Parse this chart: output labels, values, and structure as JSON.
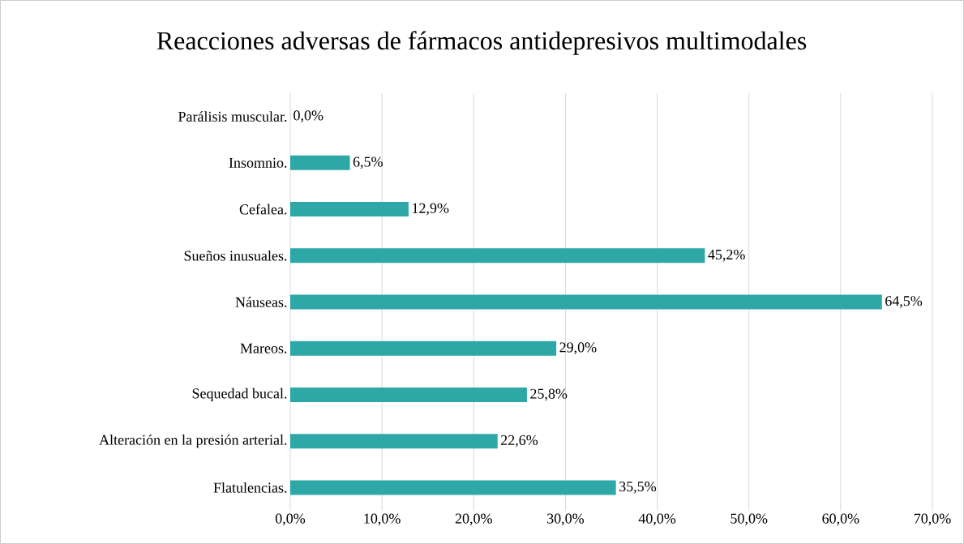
{
  "chart_data": {
    "type": "bar",
    "orientation": "horizontal",
    "title": "Reacciones adversas de fármacos antidepresivos multimodales",
    "categories": [
      "Parálisis muscular.",
      "Insomnio.",
      "Cefalea.",
      "Sueños inusuales.",
      "Náuseas.",
      "Mareos.",
      "Sequedad bucal.",
      "Alteración en la presión arterial.",
      "Flatulencias."
    ],
    "values": [
      0,
      6.5,
      12.9,
      45.2,
      64.5,
      29.0,
      25.8,
      22.6,
      35.5
    ],
    "value_labels": [
      "0,0%",
      "6,5%",
      "12,9%",
      "45,2%",
      "64,5%",
      "29,0%",
      "25,8%",
      "22,6%",
      "35,5%"
    ],
    "color": "#2ea7a7",
    "xlim": [
      0,
      70
    ],
    "xticks": [
      {
        "value": 0,
        "label": "0,0%"
      },
      {
        "value": 10,
        "label": "10,0%"
      },
      {
        "value": 20,
        "label": "20,0%"
      },
      {
        "value": 30,
        "label": "30,0%"
      },
      {
        "value": 40,
        "label": "40,0%"
      },
      {
        "value": 50,
        "label": "50,0%"
      },
      {
        "value": 60,
        "label": "60,0%"
      },
      {
        "value": 70,
        "label": "70,0%"
      }
    ],
    "grid": "x"
  }
}
